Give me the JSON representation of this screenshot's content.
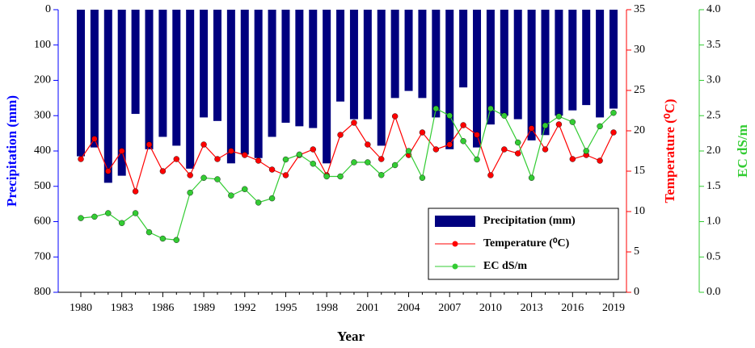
{
  "chart_data": {
    "type": "bar-line",
    "categories": [
      "1980",
      null,
      null,
      "1983",
      null,
      null,
      "1986",
      null,
      null,
      "1989",
      null,
      null,
      "1992",
      null,
      null,
      "1995",
      null,
      null,
      "1998",
      null,
      null,
      "2001",
      null,
      null,
      "2004",
      null,
      null,
      "2007",
      null,
      null,
      "2010",
      null,
      null,
      "2013",
      null,
      null,
      "2016",
      null,
      null,
      "2019"
    ],
    "x_label": "Year",
    "y_label": "Precipitation (mm)",
    "y2_label": "Temperature (⁰C)",
    "y3_label": "EC dS/m",
    "ylim": [
      0,
      800
    ],
    "y_inverted": true,
    "yticks": [
      0,
      100,
      200,
      300,
      400,
      500,
      600,
      700,
      800
    ],
    "y2lim": [
      0,
      35
    ],
    "y2ticks": [
      0,
      5,
      10,
      15,
      20,
      25,
      30,
      35
    ],
    "y3lim": [
      0,
      4
    ],
    "y3ticks": [
      {
        "value": 0,
        "label": "0.0"
      },
      {
        "value": 0.5,
        "label": "0.5"
      },
      {
        "value": 1,
        "label": "1.0"
      },
      {
        "value": 1.5,
        "label": "1.5"
      },
      {
        "value": 2,
        "label": "2.0"
      },
      {
        "value": 2.5,
        "label": "2.5"
      },
      {
        "value": 3,
        "label": "3.0"
      },
      {
        "value": 3.5,
        "label": "3.5"
      },
      {
        "value": 4,
        "label": "4.0"
      }
    ],
    "legend": "lower right",
    "series": [
      {
        "name": "Precipitation (mm)",
        "kind": "bar",
        "color": "#00007f",
        "axis": "y",
        "values": [
          415,
          390,
          490,
          470,
          295,
          395,
          360,
          385,
          450,
          305,
          315,
          435,
          410,
          420,
          360,
          320,
          330,
          335,
          435,
          260,
          310,
          310,
          385,
          250,
          230,
          250,
          305,
          395,
          220,
          390,
          325,
          300,
          310,
          370,
          355,
          300,
          285,
          270,
          305,
          280
        ]
      },
      {
        "name": "Temperature (⁰C)",
        "kind": "line",
        "color": "#ff0000",
        "axis": "y2",
        "values": [
          16.5,
          19,
          15,
          17.5,
          12.5,
          18.3,
          15,
          16.5,
          14.5,
          18.3,
          16.5,
          17.5,
          17,
          16.3,
          15.2,
          14.5,
          17,
          17.7,
          14.5,
          19.5,
          21,
          18.3,
          16.5,
          21.8,
          17,
          19.8,
          17.7,
          18.3,
          20.7,
          19.5,
          14.5,
          17.7,
          17.2,
          20.3,
          17.7,
          20.8,
          16.5,
          17,
          16.3,
          19.8
        ]
      },
      {
        "name": "EC dS/m",
        "kind": "line",
        "color": "#33cc33",
        "axis": "y3",
        "values": [
          1.05,
          1.07,
          1.12,
          0.98,
          1.12,
          0.85,
          0.76,
          0.74,
          1.41,
          1.62,
          1.6,
          1.37,
          1.46,
          1.27,
          1.33,
          1.88,
          1.95,
          1.82,
          1.64,
          1.64,
          1.84,
          1.84,
          1.66,
          1.8,
          2.0,
          1.62,
          2.6,
          2.5,
          2.14,
          1.88,
          2.6,
          2.5,
          2.12,
          1.62,
          2.36,
          2.49,
          2.41,
          2.0,
          2.35,
          2.54
        ]
      }
    ]
  }
}
